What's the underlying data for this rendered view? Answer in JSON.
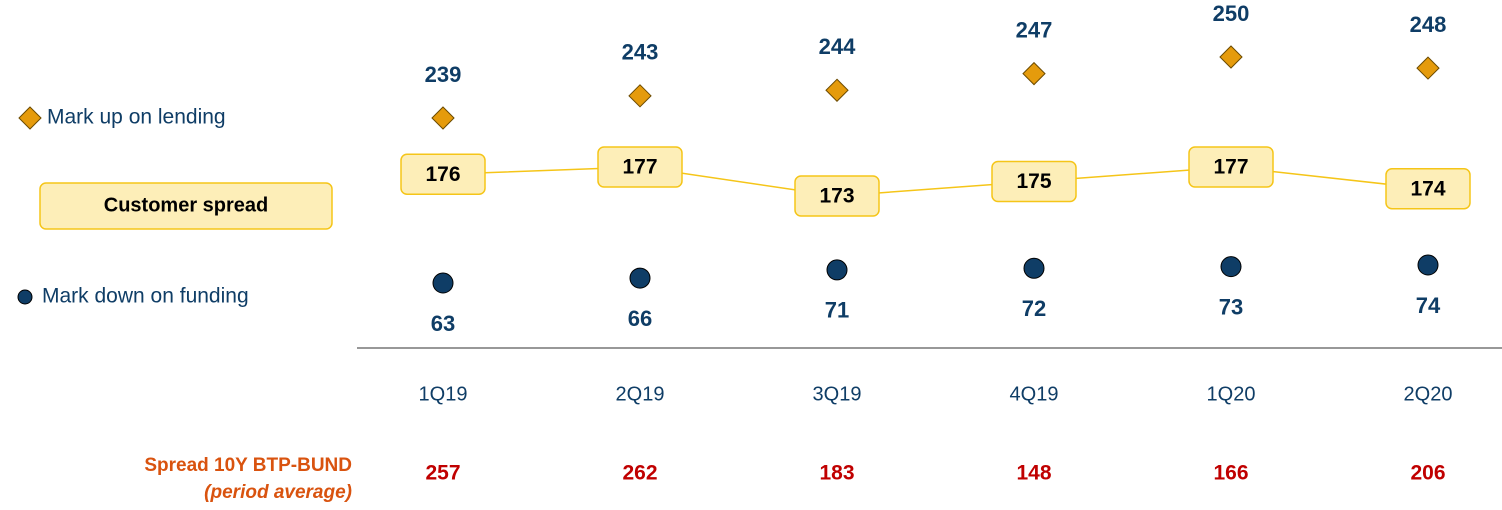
{
  "chart_data": {
    "type": "dot",
    "categories": [
      "1Q19",
      "2Q19",
      "3Q19",
      "4Q19",
      "1Q20",
      "2Q20"
    ],
    "series": [
      {
        "name": "Mark up on lending",
        "color": "#e59b0c",
        "marker": "diamond",
        "values": [
          239,
          243,
          244,
          247,
          250,
          248
        ]
      },
      {
        "name": "Customer spread",
        "color": "#f5c518",
        "marker": "box",
        "values": [
          176,
          177,
          173,
          175,
          177,
          174
        ]
      },
      {
        "name": "Mark down on funding",
        "color": "#0f3d66",
        "marker": "circle",
        "values": [
          63,
          66,
          71,
          72,
          73,
          74
        ]
      }
    ],
    "footer_row": {
      "title": "Spread 10Y BTP-BUND",
      "subtitle": "(period average)",
      "color": "#c00000",
      "values": [
        257,
        262,
        183,
        148,
        166,
        206
      ]
    }
  }
}
